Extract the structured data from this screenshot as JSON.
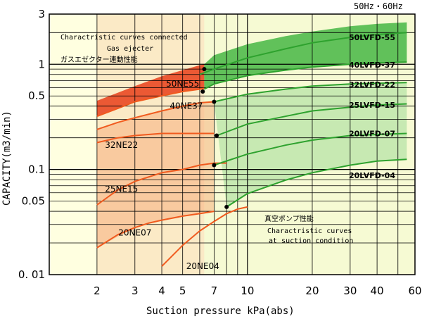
{
  "chart_data": {
    "type": "line",
    "title": "",
    "frequency_label": "50Hz・60Hz",
    "xlabel": "Suction pressure kPa(abs)",
    "ylabel": "CAPACITY(m3/min)",
    "x_scale": "log",
    "y_scale": "log",
    "xlim": [
      1.2,
      60
    ],
    "ylim": [
      0.01,
      3
    ],
    "x_ticks": [
      {
        "value": 2,
        "label": "2"
      },
      {
        "value": 3,
        "label": "3"
      },
      {
        "value": 4,
        "label": "4"
      },
      {
        "value": 5,
        "label": "5"
      },
      {
        "value": 7,
        "label": "7"
      },
      {
        "value": 10,
        "label": "10"
      },
      {
        "value": 20,
        "label": "20"
      },
      {
        "value": 30,
        "label": "30"
      },
      {
        "value": 40,
        "label": "40"
      },
      {
        "value": 60,
        "label": "60"
      }
    ],
    "y_ticks": [
      {
        "value": 3,
        "label": "3"
      },
      {
        "value": 1,
        "label": "1"
      },
      {
        "value": 0.5,
        "label": "0.5"
      },
      {
        "value": 0.1,
        "label": "0.1"
      },
      {
        "value": 0.05,
        "label": "0.05"
      },
      {
        "value": 0.01,
        "label": "0. 01"
      }
    ],
    "grid": true,
    "annotations": {
      "ejector_en": "Charactristic curves connected",
      "ejector_en2": "Gas ejecter",
      "ejector_jp": "ガスエゼクター連動性能",
      "vacuum_jp": "真空ポンプ性能",
      "vacuum_en": "Charactristic curves",
      "vacuum_en2": "at suction condition"
    },
    "colors": {
      "ejector_band": "#e8401a",
      "ejector_curve": "#f05a1e",
      "pump_band": "#3cb33c",
      "pump_curve": "#2ea22e",
      "background": "#ffffe0"
    },
    "ne_series": [
      {
        "name": "50NE55",
        "x": [
          2.0,
          2.5,
          3.0,
          4.0,
          5.0,
          6.0,
          6.3
        ],
        "y": [
          0.32,
          0.38,
          0.44,
          0.5,
          0.55,
          0.58,
          0.59
        ]
      },
      {
        "name": "40NE37",
        "x": [
          2.0,
          2.5,
          3.0,
          4.0,
          5.0,
          6.0,
          7.0
        ],
        "y": [
          0.24,
          0.28,
          0.31,
          0.36,
          0.4,
          0.43,
          0.44
        ]
      },
      {
        "name": "32NE22",
        "x": [
          2.0,
          2.5,
          3.0,
          4.0,
          5.0,
          6.0,
          7.0
        ],
        "y": [
          0.18,
          0.2,
          0.21,
          0.22,
          0.22,
          0.22,
          0.22
        ]
      },
      {
        "name": "25NE15",
        "x": [
          2.0,
          2.5,
          3.0,
          4.0,
          5.0,
          6.0,
          7.0,
          8.0
        ],
        "y": [
          0.046,
          0.064,
          0.077,
          0.093,
          0.1,
          0.11,
          0.115,
          0.115
        ]
      },
      {
        "name": "20NE07",
        "x": [
          2.0,
          2.5,
          3.0,
          3.5,
          4.0,
          5.0,
          6.0,
          7.0
        ],
        "y": [
          0.018,
          0.024,
          0.028,
          0.031,
          0.033,
          0.036,
          0.038,
          0.04
        ]
      },
      {
        "name": "20NE04",
        "x": [
          4.0,
          5.0,
          6.0,
          7.0,
          8.0,
          9.0,
          10.0
        ],
        "y": [
          0.012,
          0.019,
          0.026,
          0.032,
          0.038,
          0.042,
          0.044
        ]
      }
    ],
    "pump_series": [
      {
        "name": "50LVFD-55",
        "x": [
          6.0,
          7,
          10,
          15,
          20,
          30,
          40,
          55
        ],
        "y": [
          0.8,
          0.9,
          1.15,
          1.4,
          1.6,
          1.8,
          1.92,
          2.0
        ]
      },
      {
        "name": "40LVFD-37",
        "x": [
          6.3,
          7,
          10,
          15,
          20,
          30,
          40,
          55
        ],
        "y": [
          0.58,
          0.65,
          0.78,
          0.88,
          0.94,
          1.0,
          1.03,
          1.05
        ]
      },
      {
        "name": "32LVFD-22",
        "x": [
          7.0,
          10,
          15,
          20,
          30,
          40,
          55
        ],
        "y": [
          0.44,
          0.52,
          0.58,
          0.62,
          0.65,
          0.66,
          0.67
        ]
      },
      {
        "name": "25LVFD-15",
        "x": [
          7.2,
          10,
          15,
          20,
          30,
          40,
          55
        ],
        "y": [
          0.21,
          0.27,
          0.32,
          0.36,
          0.39,
          0.41,
          0.42
        ]
      },
      {
        "name": "20LVFD-07",
        "x": [
          7.0,
          10,
          15,
          20,
          30,
          40,
          55
        ],
        "y": [
          0.11,
          0.14,
          0.17,
          0.19,
          0.21,
          0.215,
          0.22
        ]
      },
      {
        "name": "20LVFD-04",
        "x": [
          8.0,
          10,
          15,
          20,
          30,
          40,
          55
        ],
        "y": [
          0.044,
          0.059,
          0.079,
          0.093,
          0.11,
          0.12,
          0.125
        ]
      }
    ],
    "ejector_band_edges": {
      "upper": {
        "x": [
          2.0,
          3.0,
          4.0,
          5.0,
          6.0,
          6.3
        ],
        "y": [
          0.45,
          0.62,
          0.77,
          0.88,
          0.98,
          1.0
        ]
      },
      "lower": {
        "x": [
          2.0,
          2.5,
          3.0,
          4.0,
          5.0,
          6.0,
          6.3
        ],
        "y": [
          0.32,
          0.38,
          0.44,
          0.5,
          0.55,
          0.58,
          0.59
        ]
      }
    },
    "pump_band_edges": {
      "upper": {
        "x": [
          6.3,
          7,
          10,
          15,
          20,
          30,
          40,
          55
        ],
        "y": [
          1.0,
          1.22,
          1.55,
          1.85,
          2.05,
          2.3,
          2.42,
          2.5
        ]
      },
      "lower": {
        "x": [
          6.3,
          7,
          10,
          15,
          20,
          30,
          40,
          55
        ],
        "y": [
          0.58,
          0.65,
          0.78,
          0.88,
          0.94,
          1.0,
          1.03,
          1.05
        ]
      }
    },
    "junction_points": [
      {
        "x": 6.3,
        "y": 0.9
      },
      {
        "x": 6.2,
        "y": 0.55
      },
      {
        "x": 7.0,
        "y": 0.44
      },
      {
        "x": 7.2,
        "y": 0.21
      },
      {
        "x": 7.0,
        "y": 0.11
      },
      {
        "x": 8.0,
        "y": 0.044
      }
    ]
  }
}
